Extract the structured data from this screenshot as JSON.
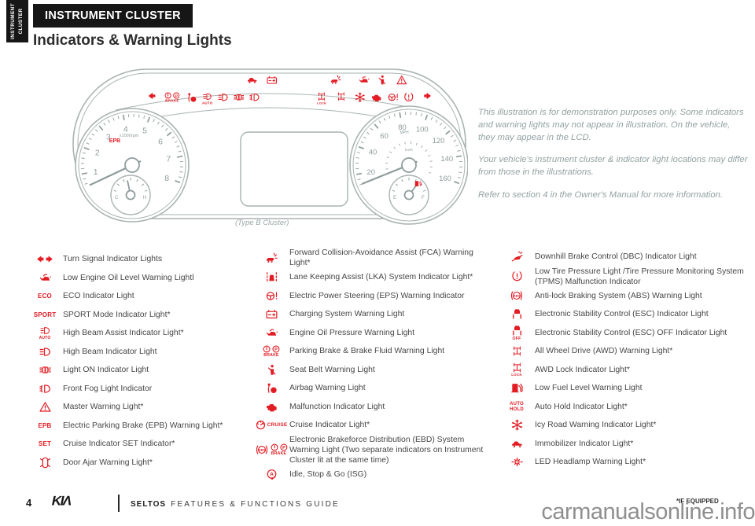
{
  "sidebar_tab": "INSTRUMENT CLUSTER",
  "header": {
    "section": "INSTRUMENT CLUSTER",
    "title": "Indicators & Warning Lights"
  },
  "cluster": {
    "caption": "(Type B Cluster)",
    "tach": {
      "labels": [
        "1",
        "2",
        "3",
        "4",
        "5",
        "6",
        "7",
        "8"
      ],
      "unit": "x1000rpm",
      "epb": "EPB",
      "sub_left": "C",
      "sub_right": "H"
    },
    "speed": {
      "labels": [
        "20",
        "40",
        "60",
        "80",
        "100",
        "120",
        "140",
        "160"
      ],
      "unit": "MPH",
      "unit2": "km/h",
      "sub_left": "E",
      "sub_right": "F"
    },
    "strip_row1": [
      "immobilizer",
      "battery",
      "fca",
      "oil-can",
      "seat-belt",
      "master-warning"
    ],
    "strip_row2": [
      "arrow-left",
      "brake-warning",
      "airbag",
      "high-beam-auto",
      "high-beam",
      "lights-on",
      "fog-light",
      "awd-lock",
      "awd",
      "icy-road",
      "engine",
      "eps",
      "tpms",
      "arrow-right"
    ],
    "low_fuel_marker": "fuel"
  },
  "notes": [
    "This illustration is for demonstration purposes only. Some indicators and warning lights may not appear in illustration. On the vehicle, they may appear in the LCD.",
    "Your vehicle's instrument cluster & indicator light locations may differ from those in the illustrations.",
    "Refer to section 4 in the Owner's Manual for more information."
  ],
  "legend": {
    "columns": [
      {
        "items": [
          {
            "icon": "turn-signal",
            "label": "Turn Signal Indicator Lights"
          },
          {
            "icon": "oil-can",
            "label": "Low Engine Oil Level Warning Lightl"
          },
          {
            "icon": "eco",
            "label": "ECO Indicator Light"
          },
          {
            "icon": "sport",
            "label": "SPORT Mode Indicator Light*"
          },
          {
            "icon": "high-beam-auto",
            "label": "High Beam Assist Indicator Light*"
          },
          {
            "icon": "high-beam",
            "label": "High Beam Indicator Light"
          },
          {
            "icon": "lights-on",
            "label": "Light ON Indicator Light"
          },
          {
            "icon": "fog-light",
            "label": "Front Fog Light Indicator"
          },
          {
            "icon": "master-warning",
            "label": "Master Warning Light*"
          },
          {
            "icon": "epb",
            "label": "Electric Parking Brake (EPB) Warning Light*"
          },
          {
            "icon": "set",
            "label": "Cruise Indicator SET Indicator*"
          },
          {
            "icon": "door-ajar",
            "label": "Door Ajar Warning Light*"
          }
        ]
      },
      {
        "items": [
          {
            "icon": "fca",
            "label": "Forward Collision-Avoidance Assist (FCA) Warning Light*"
          },
          {
            "icon": "lka",
            "label": "Lane Keeping Assist (LKA) System Indicator Light*"
          },
          {
            "icon": "eps",
            "label": "Electric Power Steering (EPS) Warning Indicator"
          },
          {
            "icon": "battery",
            "label": "Charging System Warning Light"
          },
          {
            "icon": "oil-can",
            "label": "Engine Oil Pressure Warning Light"
          },
          {
            "icon": "brake-warning",
            "label": "Parking Brake & Brake Fluid Warning Light"
          },
          {
            "icon": "seat-belt",
            "label": "Seat Belt Warning Light"
          },
          {
            "icon": "airbag",
            "label": "Airbag Warning Light"
          },
          {
            "icon": "engine",
            "label": "Malfunction Indicator Light"
          },
          {
            "icon": "cruise",
            "label": "Cruise Indicator Light*"
          },
          {
            "icon": "ebd",
            "label": "Electronic Brakeforce Distribution (EBD) System Warning Light (Two separate indicators on Instrument Cluster lit at the same time)"
          },
          {
            "icon": "isg",
            "label": "Idle, Stop & Go (ISG)"
          }
        ]
      },
      {
        "items": [
          {
            "icon": "dbc",
            "label": "Downhill Brake Control (DBC) Indicator Light"
          },
          {
            "icon": "tpms",
            "label": "Low Tire Pressure Light /Tire Pressure Monitoring System (TPMS) Malfunction Indicator"
          },
          {
            "icon": "abs",
            "label": "Anti-lock Braking System (ABS) Warning Light"
          },
          {
            "icon": "esc",
            "label": "Electronic Stability Control (ESC) Indicator Light"
          },
          {
            "icon": "esc-off",
            "label": "Electronic Stability Control (ESC) OFF Indicator Light"
          },
          {
            "icon": "awd",
            "label": "All Wheel Drive (AWD) Warning Light*"
          },
          {
            "icon": "awd-lock",
            "label": "AWD Lock Indicator Light*"
          },
          {
            "icon": "fuel",
            "label": "Low Fuel Level Warning Light"
          },
          {
            "icon": "auto-hold",
            "label": "Auto Hold Indicator Light*"
          },
          {
            "icon": "icy-road",
            "label": "Icy Road Warning Indicator Light*"
          },
          {
            "icon": "immobilizer",
            "label": "Immobilizer Indicator Light*"
          },
          {
            "icon": "led-headlamp",
            "label": "LED Headlamp Warning Light*"
          }
        ]
      }
    ]
  },
  "footer": {
    "page": "4",
    "brand": "KIA",
    "doc_bold": "SELTOS",
    "doc_rest": "FEATURES & FUNCTIONS GUIDE",
    "equipped": "*IF EQUIPPED",
    "watermark": "carmanualsonline.info"
  },
  "colors": {
    "accent": "#e31b23",
    "outline": "#a9b4b2",
    "gauge_text": "#8f9c9c",
    "note_text": "#93a2a2"
  }
}
